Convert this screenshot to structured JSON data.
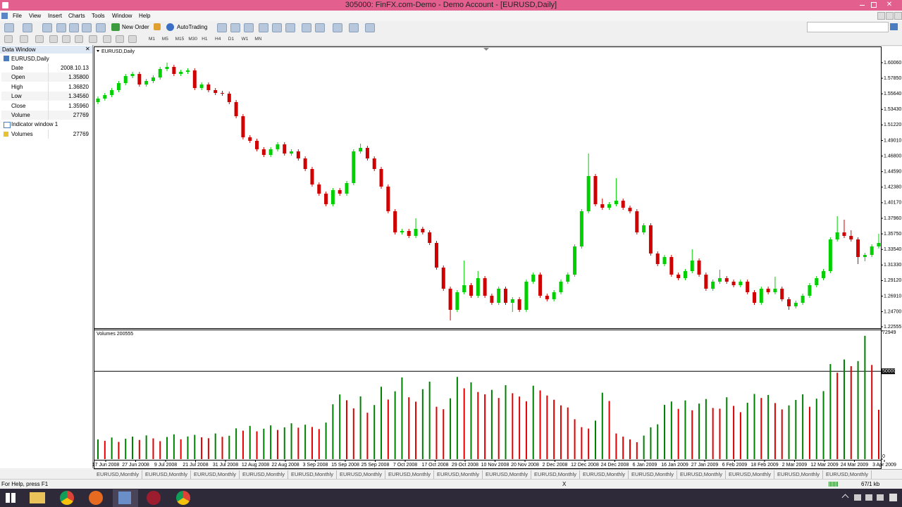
{
  "title_bar": {
    "title": "305000: FinFX.com-Demo - Demo Account - [EURUSD,Daily]"
  },
  "menu": [
    "File",
    "View",
    "Insert",
    "Charts",
    "Tools",
    "Window",
    "Help"
  ],
  "toolbar": {
    "new_order": "New Order",
    "auto_trading": "AutoTrading",
    "timeframes": [
      "M1",
      "M5",
      "M15",
      "M30",
      "H1",
      "H4",
      "D1",
      "W1",
      "MN"
    ]
  },
  "data_window": {
    "title": "Data Window",
    "symbol": "EURUSD,Daily",
    "rows": [
      [
        "Date",
        "2008.10.13"
      ],
      [
        "Open",
        "1.35800"
      ],
      [
        "High",
        "1.36820"
      ],
      [
        "Low",
        "1.34560"
      ],
      [
        "Close",
        "1.35960"
      ],
      [
        "Volume",
        "27769"
      ]
    ],
    "indicator": "Indicator window 1",
    "indicator_rows": [
      [
        "Volumes",
        "27769"
      ]
    ]
  },
  "chart_data": [
    {
      "type": "candlestick",
      "title": "EURUSD,Daily",
      "up_color": "#00d000",
      "down_color": "#d00000",
      "grid": false,
      "ylim": [
        1.2236,
        1.6226
      ],
      "yticks": [
        {
          "value": 1.6006,
          "label": "1.60060"
        },
        {
          "value": 1.5785,
          "label": "1.57850"
        },
        {
          "value": 1.5564,
          "label": "1.55640"
        },
        {
          "value": 1.5343,
          "label": "1.53430"
        },
        {
          "value": 1.5122,
          "label": "1.51220"
        },
        {
          "value": 1.4901,
          "label": "1.49010"
        },
        {
          "value": 1.468,
          "label": "1.46800"
        },
        {
          "value": 1.4459,
          "label": "1.44590"
        },
        {
          "value": 1.4238,
          "label": "1.42380"
        },
        {
          "value": 1.4017,
          "label": "1.40170"
        },
        {
          "value": 1.3796,
          "label": "1.37960"
        },
        {
          "value": 1.3575,
          "label": "1.35750"
        },
        {
          "value": 1.3354,
          "label": "1.33540"
        },
        {
          "value": 1.3133,
          "label": "1.31330"
        },
        {
          "value": 1.2912,
          "label": "1.29120"
        },
        {
          "value": 1.2691,
          "label": "1.26910"
        },
        {
          "value": 1.247,
          "label": "1.24700"
        },
        {
          "value": 1.22555,
          "label": "1.22555"
        }
      ],
      "date_labels": [
        "17 Jun 2008",
        "27 Jun 2008",
        "9 Jul 2008",
        "21 Jul 2008",
        "31 Jul 2008",
        "12 Aug 2008",
        "22 Aug 2008",
        "3 Sep 2008",
        "15 Sep 2008",
        "25 Sep 2008",
        "7 Oct 2008",
        "17 Oct 2008",
        "29 Oct 2008",
        "10 Nov 2008",
        "20 Nov 2008",
        "2 Dec 2008",
        "12 Dec 2008",
        "24 Dec 2008",
        "6 Jan 2009",
        "16 Jan 2009",
        "27 Jan 2009",
        "6 Feb 2009",
        "18 Feb 2009",
        "2 Mar 2009",
        "12 Mar 2009",
        "24 Mar 2009",
        "3 Apr 2009"
      ],
      "ohlc": [
        [
          1.5446,
          1.5526,
          1.5416,
          1.5496
        ],
        [
          1.5496,
          1.5576,
          1.5466,
          1.5546
        ],
        [
          1.5546,
          1.5646,
          1.5516,
          1.5616
        ],
        [
          1.5616,
          1.5746,
          1.5586,
          1.5716
        ],
        [
          1.5716,
          1.5846,
          1.5686,
          1.5816
        ],
        [
          1.5816,
          1.5876,
          1.5786,
          1.5846
        ],
        [
          1.5846,
          1.5876,
          1.5666,
          1.5696
        ],
        [
          1.5696,
          1.5776,
          1.5666,
          1.5746
        ],
        [
          1.5746,
          1.5826,
          1.5716,
          1.5796
        ],
        [
          1.5796,
          1.5946,
          1.5766,
          1.5916
        ],
        [
          1.5916,
          1.6006,
          1.5886,
          1.5946
        ],
        [
          1.5946,
          1.5976,
          1.5816,
          1.5846
        ],
        [
          1.5846,
          1.5906,
          1.5816,
          1.5876
        ],
        [
          1.5876,
          1.5926,
          1.5846,
          1.5896
        ],
        [
          1.5896,
          1.5926,
          1.5616,
          1.5646
        ],
        [
          1.5646,
          1.5726,
          1.5616,
          1.5696
        ],
        [
          1.5696,
          1.5726,
          1.5586,
          1.5616
        ],
        [
          1.5616,
          1.5646,
          1.5546,
          1.5576
        ],
        [
          1.5576,
          1.5606,
          1.5536,
          1.5566
        ],
        [
          1.5566,
          1.5596,
          1.5416,
          1.5446
        ],
        [
          1.5446,
          1.5476,
          1.5216,
          1.5246
        ],
        [
          1.5246,
          1.5276,
          1.4916,
          1.4946
        ],
        [
          1.4946,
          1.4976,
          1.4866,
          1.4896
        ],
        [
          1.4896,
          1.4926,
          1.4746,
          1.4776
        ],
        [
          1.4776,
          1.4806,
          1.4666,
          1.4696
        ],
        [
          1.4696,
          1.4806,
          1.4666,
          1.4776
        ],
        [
          1.4776,
          1.4876,
          1.4746,
          1.4846
        ],
        [
          1.4846,
          1.4876,
          1.4686,
          1.4716
        ],
        [
          1.4716,
          1.4776,
          1.4686,
          1.4746
        ],
        [
          1.4746,
          1.4776,
          1.4616,
          1.4646
        ],
        [
          1.4646,
          1.4676,
          1.4466,
          1.4496
        ],
        [
          1.4496,
          1.4526,
          1.4246,
          1.4276
        ],
        [
          1.4276,
          1.4306,
          1.4116,
          1.4146
        ],
        [
          1.4146,
          1.4176,
          1.3966,
          1.3996
        ],
        [
          1.3996,
          1.4226,
          1.3966,
          1.4196
        ],
        [
          1.4196,
          1.4226,
          1.4116,
          1.4146
        ],
        [
          1.4146,
          1.4326,
          1.4116,
          1.4296
        ],
        [
          1.4296,
          1.4776,
          1.4266,
          1.4746
        ],
        [
          1.4746,
          1.4856,
          1.4716,
          1.4796
        ],
        [
          1.4796,
          1.4826,
          1.4616,
          1.4646
        ],
        [
          1.4646,
          1.4676,
          1.4466,
          1.4496
        ],
        [
          1.4496,
          1.4526,
          1.4216,
          1.4246
        ],
        [
          1.4246,
          1.4276,
          1.3866,
          1.3896
        ],
        [
          1.3896,
          1.3926,
          1.3566,
          1.3596
        ],
        [
          1.3596,
          1.3646,
          1.3566,
          1.3616
        ],
        [
          1.3616,
          1.3646,
          1.3516,
          1.3546
        ],
        [
          1.3546,
          1.3796,
          1.3516,
          1.3646
        ],
        [
          1.3646,
          1.3676,
          1.3566,
          1.3596
        ],
        [
          1.3596,
          1.3626,
          1.3416,
          1.3446
        ],
        [
          1.3446,
          1.3476,
          1.3066,
          1.3096
        ],
        [
          1.3096,
          1.3126,
          1.2766,
          1.2796
        ],
        [
          1.2796,
          1.2826,
          1.2346,
          1.2496
        ],
        [
          1.2496,
          1.2776,
          1.2466,
          1.2746
        ],
        [
          1.2746,
          1.3196,
          1.2716,
          1.2846
        ],
        [
          1.2846,
          1.2876,
          1.2666,
          1.2696
        ],
        [
          1.2696,
          1.3046,
          1.2666,
          1.2946
        ],
        [
          1.2946,
          1.2976,
          1.2666,
          1.2696
        ],
        [
          1.2696,
          1.2726,
          1.2566,
          1.2596
        ],
        [
          1.2596,
          1.2826,
          1.2566,
          1.2796
        ],
        [
          1.2796,
          1.2826,
          1.2566,
          1.2596
        ],
        [
          1.2596,
          1.2676,
          1.2466,
          1.2646
        ],
        [
          1.2646,
          1.2676,
          1.2466,
          1.2496
        ],
        [
          1.2496,
          1.2926,
          1.2466,
          1.2896
        ],
        [
          1.2896,
          1.3026,
          1.2866,
          1.2996
        ],
        [
          1.2996,
          1.3026,
          1.2666,
          1.2696
        ],
        [
          1.2696,
          1.2726,
          1.2616,
          1.2646
        ],
        [
          1.2646,
          1.2776,
          1.2616,
          1.2746
        ],
        [
          1.2746,
          1.2926,
          1.2716,
          1.2896
        ],
        [
          1.2896,
          1.3026,
          1.2866,
          1.2996
        ],
        [
          1.2996,
          1.3426,
          1.2966,
          1.3396
        ],
        [
          1.3396,
          1.3926,
          1.3366,
          1.3896
        ],
        [
          1.3896,
          1.4716,
          1.3866,
          1.4396
        ],
        [
          1.4396,
          1.4426,
          1.3966,
          1.3996
        ],
        [
          1.3996,
          1.4076,
          1.3916,
          1.3946
        ],
        [
          1.3946,
          1.4026,
          1.3916,
          1.3996
        ],
        [
          1.3996,
          1.4366,
          1.3966,
          1.4046
        ],
        [
          1.4046,
          1.4076,
          1.3916,
          1.3946
        ],
        [
          1.3946,
          1.3976,
          1.3866,
          1.3896
        ],
        [
          1.3896,
          1.3926,
          1.3566,
          1.3596
        ],
        [
          1.3596,
          1.3726,
          1.3566,
          1.3696
        ],
        [
          1.3696,
          1.3726,
          1.3266,
          1.3296
        ],
        [
          1.3296,
          1.3326,
          1.3116,
          1.3146
        ],
        [
          1.3146,
          1.3276,
          1.3116,
          1.3246
        ],
        [
          1.3246,
          1.3276,
          1.2966,
          1.2996
        ],
        [
          1.2996,
          1.3026,
          1.2916,
          1.2946
        ],
        [
          1.2946,
          1.3076,
          1.2916,
          1.3046
        ],
        [
          1.3046,
          1.3356,
          1.3016,
          1.3196
        ],
        [
          1.3196,
          1.3226,
          1.2966,
          1.2996
        ],
        [
          1.2996,
          1.3026,
          1.2766,
          1.2796
        ],
        [
          1.2796,
          1.2926,
          1.2766,
          1.2896
        ],
        [
          1.2896,
          1.3066,
          1.2866,
          1.2946
        ],
        [
          1.2946,
          1.2976,
          1.2866,
          1.2896
        ],
        [
          1.2896,
          1.2926,
          1.2816,
          1.2846
        ],
        [
          1.2846,
          1.2926,
          1.2816,
          1.2896
        ],
        [
          1.2896,
          1.2926,
          1.2716,
          1.2746
        ],
        [
          1.2746,
          1.2776,
          1.2566,
          1.2596
        ],
        [
          1.2596,
          1.2826,
          1.2566,
          1.2796
        ],
        [
          1.2796,
          1.2826,
          1.2716,
          1.2746
        ],
        [
          1.2746,
          1.2966,
          1.2716,
          1.2796
        ],
        [
          1.2796,
          1.2826,
          1.2616,
          1.2646
        ],
        [
          1.2646,
          1.2676,
          1.2496,
          1.2546
        ],
        [
          1.2546,
          1.2626,
          1.2516,
          1.2596
        ],
        [
          1.2596,
          1.2726,
          1.2566,
          1.2696
        ],
        [
          1.2696,
          1.2876,
          1.2666,
          1.2846
        ],
        [
          1.2846,
          1.2976,
          1.2816,
          1.2946
        ],
        [
          1.2946,
          1.3076,
          1.2916,
          1.3046
        ],
        [
          1.3046,
          1.3526,
          1.3016,
          1.3496
        ],
        [
          1.3496,
          1.3826,
          1.3466,
          1.3596
        ],
        [
          1.3596,
          1.3776,
          1.3516,
          1.3546
        ],
        [
          1.3546,
          1.3626,
          1.3466,
          1.3496
        ],
        [
          1.3496,
          1.3526,
          1.3146,
          1.3246
        ],
        [
          1.3246,
          1.3306,
          1.3186,
          1.3276
        ],
        [
          1.3276,
          1.3426,
          1.3246,
          1.3396
        ],
        [
          1.3396,
          1.3576,
          1.3366,
          1.3446
        ]
      ]
    },
    {
      "type": "bar",
      "title": "Volumes 200555",
      "up_color": "#008000",
      "down_color": "#e00000",
      "ylim": [
        0,
        72949
      ],
      "yticks": [
        0,
        50000,
        72949
      ],
      "values": [
        11200,
        10400,
        12300,
        9800,
        11600,
        12800,
        10900,
        13500,
        11800,
        10200,
        12600,
        14100,
        11300,
        12900,
        13800,
        12400,
        11900,
        14600,
        12700,
        13300,
        17500,
        16200,
        18900,
        15800,
        17300,
        19200,
        16600,
        18100,
        20400,
        17900,
        19600,
        18300,
        17100,
        20800,
        31200,
        36800,
        33500,
        28900,
        35700,
        26400,
        30800,
        41200,
        33900,
        38600,
        46500,
        35200,
        32700,
        39800,
        44100,
        29800,
        28400,
        34600,
        46800,
        40300,
        43700,
        38200,
        36900,
        39400,
        34800,
        42100,
        37500,
        35600,
        32900,
        41800,
        39100,
        36200,
        33800,
        30600,
        29400,
        22700,
        18200,
        17400,
        21900,
        37800,
        33100,
        14600,
        12800,
        11200,
        9600,
        13400,
        18100,
        19800,
        30900,
        32800,
        28600,
        33400,
        27800,
        31600,
        34200,
        29100,
        28700,
        35200,
        30300,
        26700,
        32100,
        37100,
        34800,
        36500,
        31900,
        28300,
        30600,
        33700,
        36900,
        29800,
        34400,
        38700,
        54100,
        49200,
        56700,
        52900,
        55800,
        70200,
        53600,
        28100
      ]
    }
  ],
  "tabs": [
    "EURUSD,Monthly",
    "EURUSD,Monthly",
    "EURUSD,Monthly",
    "EURUSD,Monthly",
    "EURUSD,Monthly",
    "EURUSD,Monthly",
    "EURUSD,Monthly",
    "EURUSD,Monthly",
    "EURUSD,Monthly",
    "EURUSD,Monthly",
    "EURUSD,Monthly",
    "EURUSD,Monthly",
    "EURUSD,Monthly",
    "EURUSD,Monthly",
    "EURUSD,Monthly",
    "EURUSD,Monthly"
  ],
  "status_bar": {
    "help": "For Help, press F1",
    "marker": "X",
    "traffic": "67/1 kb"
  }
}
